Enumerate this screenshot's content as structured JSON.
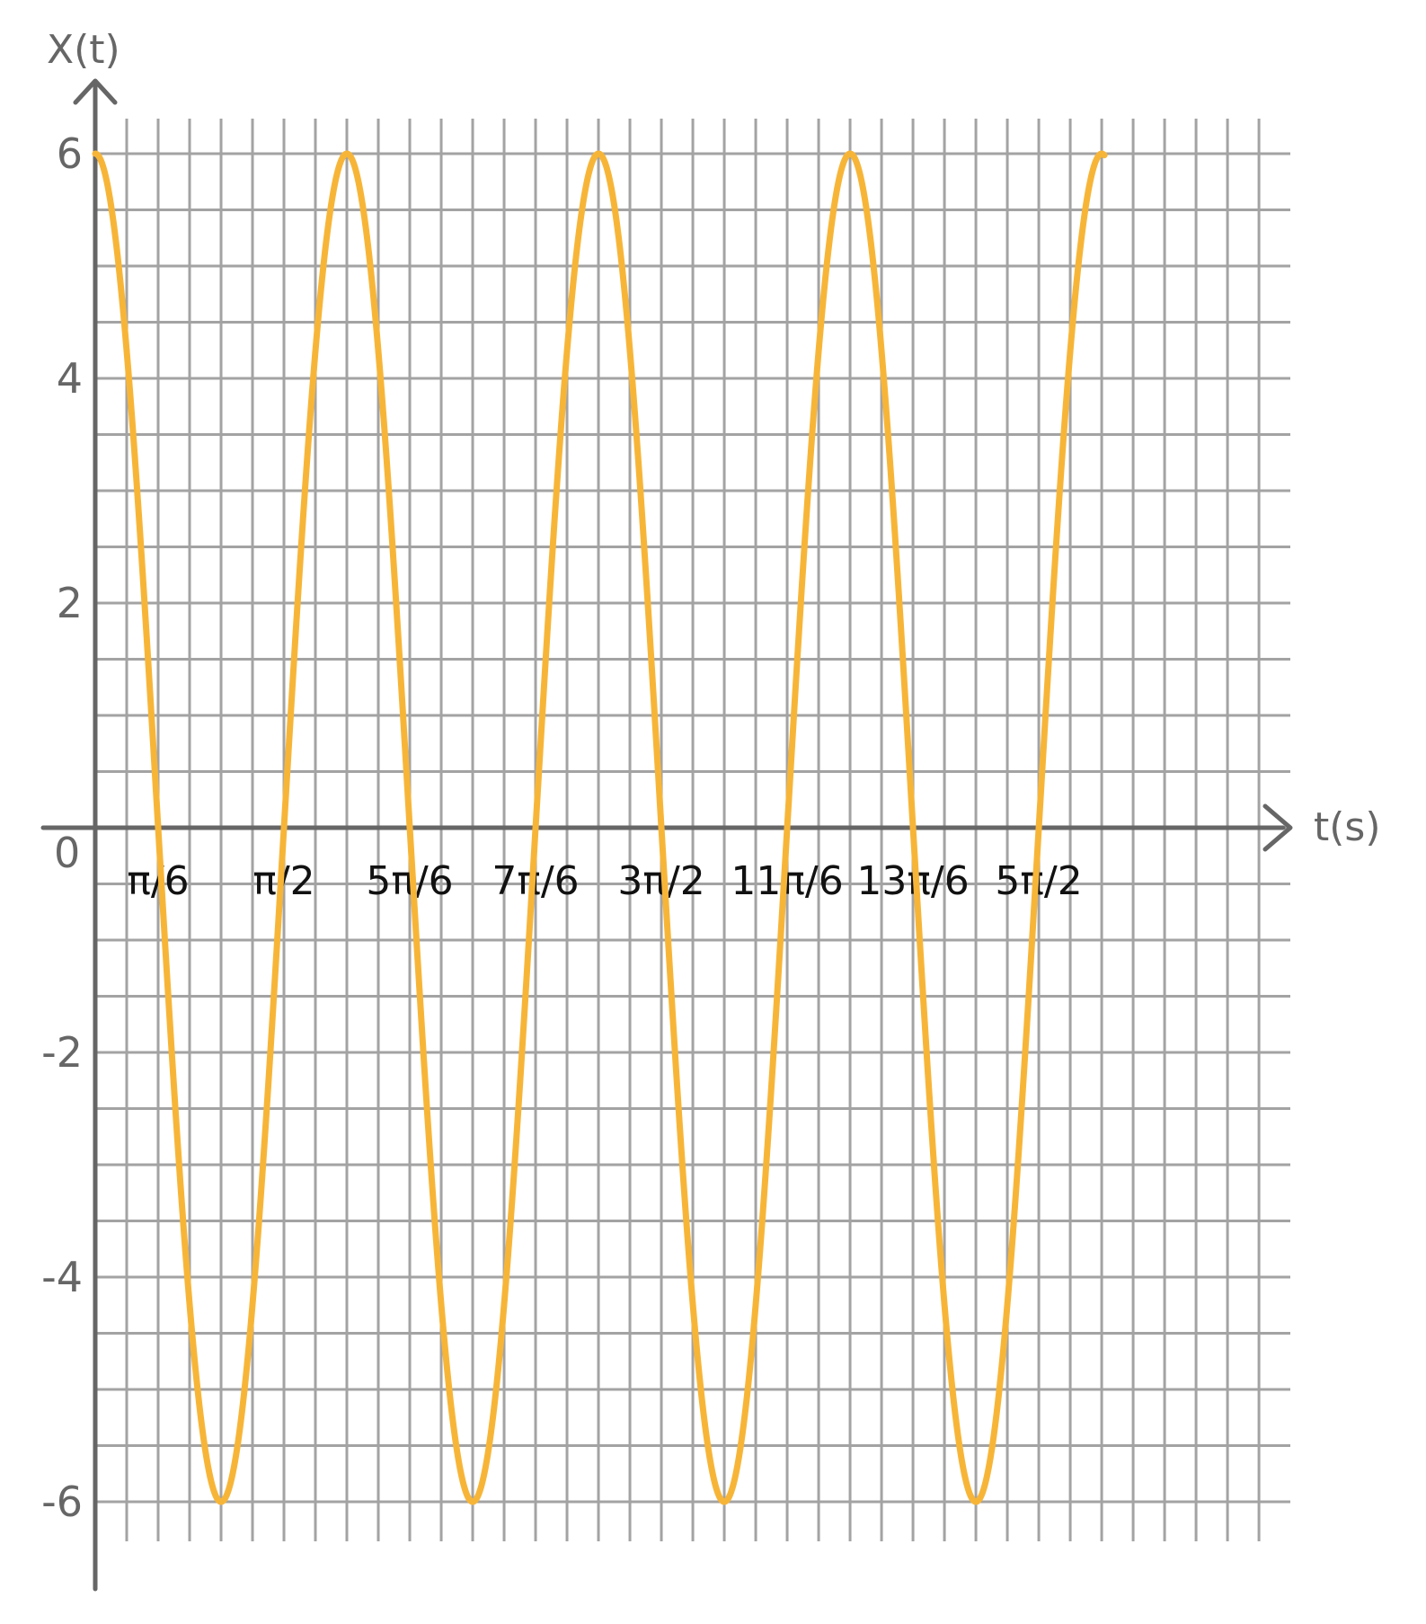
{
  "chart_data": {
    "type": "line",
    "title": "",
    "xlabel": "t(s)",
    "ylabel": "X(t)",
    "origin_label": "0",
    "xlim": [
      0,
      8.4
    ],
    "ylim": [
      -6,
      6
    ],
    "grid": true,
    "y_ticks": [
      {
        "value": 6,
        "label": "6"
      },
      {
        "value": 4,
        "label": "4"
      },
      {
        "value": 2,
        "label": "2"
      },
      {
        "value": -2,
        "label": "-2"
      },
      {
        "value": -4,
        "label": "-4"
      },
      {
        "value": -6,
        "label": "-6"
      }
    ],
    "x_ticks": [
      {
        "value": 0.5236,
        "label": "π/6"
      },
      {
        "value": 1.5708,
        "label": "π/2"
      },
      {
        "value": 2.618,
        "label": "5π/6"
      },
      {
        "value": 3.6652,
        "label": "7π/6"
      },
      {
        "value": 4.7124,
        "label": "3π/2"
      },
      {
        "value": 5.7596,
        "label": "11π/6"
      },
      {
        "value": 6.8068,
        "label": "13π/6"
      },
      {
        "value": 7.854,
        "label": "5π/2"
      }
    ],
    "series": [
      {
        "color": "#f7b538",
        "function": "6cos(3t)",
        "amplitude": 6,
        "angular_frequency": 3,
        "t_range": [
          0,
          8.4
        ],
        "peaks": [
          [
            0,
            6
          ],
          [
            2.094,
            6
          ],
          [
            4.189,
            6
          ],
          [
            6.283,
            6
          ],
          [
            8.378,
            6
          ]
        ],
        "troughs": [
          [
            1.047,
            -6
          ],
          [
            3.142,
            -6
          ],
          [
            5.236,
            -6
          ],
          [
            7.33,
            -6
          ]
        ]
      }
    ]
  }
}
